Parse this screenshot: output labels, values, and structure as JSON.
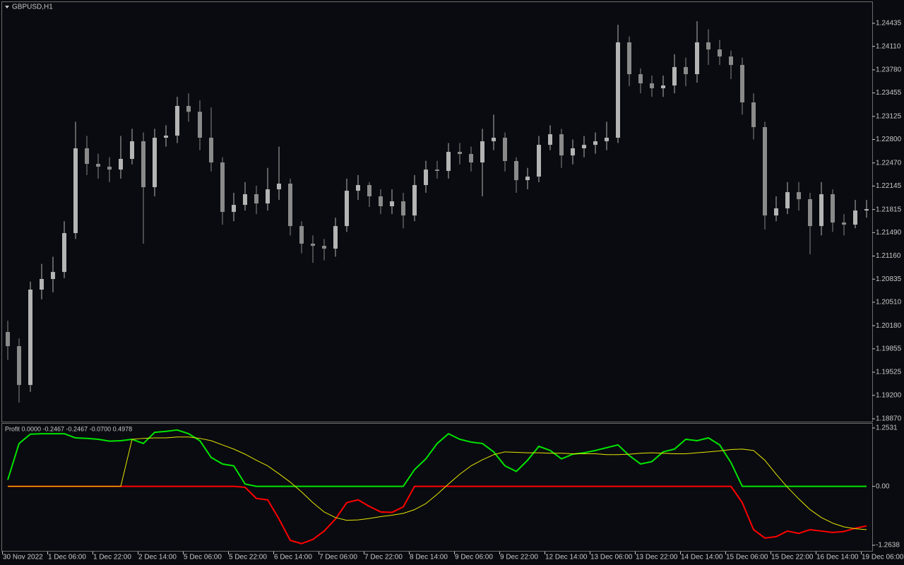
{
  "chart_data": [
    {
      "type": "candlestick",
      "title": "GBPUSD,H1",
      "open": [
        1.20091,
        1.19892,
        1.19346,
        1.20688,
        1.20837,
        1.20936,
        1.21483,
        1.22676,
        1.22457,
        1.22417,
        1.22377,
        1.22527,
        1.22775,
        1.22129,
        1.22825,
        1.22855,
        1.23272,
        1.2319,
        1.22825,
        1.22477,
        1.21781,
        1.2188,
        1.2203,
        1.219,
        1.22099,
        1.22179,
        1.21582,
        1.21334,
        1.21304,
        1.21264,
        1.21582,
        1.22079,
        1.22159,
        1.22,
        1.21861,
        1.2193,
        1.21731,
        1.22159,
        1.22377,
        1.22358,
        1.22626,
        1.22596,
        1.22477,
        1.22775,
        1.22825,
        1.22497,
        1.22228,
        1.22278,
        1.22725,
        1.22874,
        1.22576,
        1.22676,
        1.22725,
        1.22775,
        1.22825,
        1.24167,
        1.23719,
        1.2359,
        1.23521,
        1.2356,
        1.23819,
        1.23719,
        1.24167,
        1.24067,
        1.23968,
        1.23849,
        1.23322,
        1.22974,
        1.21731,
        1.21831,
        1.22059,
        1.2196,
        1.21582,
        1.2203,
        1.21632,
        1.21602,
        1.21801
      ],
      "high": [
        1.2025,
        1.2,
        1.208,
        1.2105,
        1.2115,
        1.2165,
        1.2305,
        1.2285,
        1.226,
        1.2255,
        1.2285,
        1.2295,
        1.229,
        1.2295,
        1.23,
        1.234,
        1.2345,
        1.2335,
        1.2325,
        1.2255,
        1.2205,
        1.222,
        1.2215,
        1.224,
        1.227,
        1.2225,
        1.2165,
        1.2145,
        1.214,
        1.217,
        1.2225,
        1.223,
        1.222,
        1.221,
        1.221,
        1.2205,
        1.223,
        1.225,
        1.225,
        1.2275,
        1.2275,
        1.227,
        1.2295,
        1.2315,
        1.229,
        1.2255,
        1.224,
        1.2285,
        1.23,
        1.2295,
        1.228,
        1.2285,
        1.229,
        1.2305,
        1.24415,
        1.2425,
        1.238,
        1.237,
        1.237,
        1.24,
        1.2395,
        1.24465,
        1.2435,
        1.242,
        1.2405,
        1.2395,
        1.2345,
        1.2305,
        1.22,
        1.222,
        1.222,
        1.2205,
        1.222,
        1.221,
        1.2175,
        1.2195,
        1.2195
      ],
      "low": [
        1.197,
        1.19098,
        1.1925,
        1.2055,
        1.2065,
        1.2085,
        1.214,
        1.223,
        1.2225,
        1.222,
        1.2225,
        1.2245,
        1.21334,
        1.22,
        1.227,
        1.2275,
        1.2305,
        1.2265,
        1.2235,
        1.216,
        1.2165,
        1.218,
        1.2175,
        1.218,
        1.2195,
        1.2145,
        1.212,
        1.21065,
        1.211,
        1.2115,
        1.215,
        1.2195,
        1.2185,
        1.2175,
        1.2175,
        1.2155,
        1.2165,
        1.2205,
        1.2225,
        1.2225,
        1.2245,
        1.2235,
        1.22,
        1.2265,
        1.2235,
        1.2205,
        1.221,
        1.222,
        1.2265,
        1.224,
        1.2245,
        1.2255,
        1.226,
        1.2265,
        1.2275,
        1.2355,
        1.2345,
        1.234,
        1.234,
        1.2345,
        1.2355,
        1.236,
        1.2385,
        1.2385,
        1.2365,
        1.2315,
        1.228,
        1.21533,
        1.2165,
        1.2175,
        1.218,
        1.21185,
        1.2145,
        1.215,
        1.2145,
        1.2155,
        1.217
      ],
      "close": [
        1.19892,
        1.19346,
        1.20688,
        1.20837,
        1.20936,
        1.21483,
        1.22676,
        1.22457,
        1.22417,
        1.22377,
        1.22527,
        1.22775,
        1.22129,
        1.22825,
        1.22855,
        1.23272,
        1.2319,
        1.22825,
        1.22477,
        1.21781,
        1.2188,
        1.2203,
        1.219,
        1.22099,
        1.22179,
        1.21582,
        1.21334,
        1.21304,
        1.21264,
        1.21582,
        1.22079,
        1.22159,
        1.22,
        1.21861,
        1.2193,
        1.21731,
        1.22159,
        1.22377,
        1.22358,
        1.22626,
        1.22596,
        1.22477,
        1.22775,
        1.22825,
        1.22497,
        1.22228,
        1.22278,
        1.22725,
        1.22874,
        1.22576,
        1.22676,
        1.22725,
        1.22775,
        1.22825,
        1.24167,
        1.23719,
        1.2359,
        1.23521,
        1.2356,
        1.23819,
        1.23719,
        1.24167,
        1.24067,
        1.23968,
        1.23849,
        1.23322,
        1.22974,
        1.21731,
        1.21831,
        1.22059,
        1.2196,
        1.21582,
        1.2203,
        1.21632,
        1.21602,
        1.21801,
        1.21821
      ],
      "bull_color": "#b4b4b4",
      "bear_color": "#8a8a8a",
      "ylim": [
        1.1883,
        1.24733
      ],
      "yticks": [
        1.24435,
        {
          "value": 1.2411,
          "label": "1.24110"
        },
        {
          "value": 1.2378,
          "label": "1.23780"
        },
        1.23455,
        1.23125,
        {
          "value": 1.228,
          "label": "1.22800"
        },
        {
          "value": 1.2247,
          "label": "1.22470"
        },
        1.22145,
        1.21815,
        {
          "value": 1.2149,
          "label": "1.21490"
        },
        {
          "value": 1.2116,
          "label": "1.21160"
        },
        1.20835,
        {
          "value": 1.2051,
          "label": "1.20510"
        },
        {
          "value": 1.2018,
          "label": "1.20180"
        },
        1.19855,
        1.19525,
        {
          "value": 1.192,
          "label": "1.19200"
        },
        {
          "value": 1.1887,
          "label": "1.18870"
        }
      ]
    },
    {
      "type": "line",
      "title": "Profit 0.0000 -0.2467 -0.2467 -0.0700 0.4978",
      "series": [
        {
          "color": "#00e400",
          "width": 2,
          "values": [
            0.14,
            0.92,
            1.12,
            1.13,
            1.13,
            1.13,
            1.04,
            1.03,
            1.01,
            0.97,
            0.98,
            1.01,
            0.92,
            1.16,
            1.18,
            1.21,
            1.13,
            0.98,
            0.62,
            0.48,
            0.44,
            0.05,
            0,
            0,
            0,
            0,
            0,
            0,
            0,
            0,
            0,
            0,
            0,
            0,
            0,
            0,
            0.36,
            0.59,
            0.92,
            1.13,
            1.01,
            0.95,
            0.92,
            0.74,
            0.44,
            0.32,
            0.56,
            0.86,
            0.77,
            0.59,
            0.69,
            0.72,
            0.77,
            0.83,
            0.89,
            0.66,
            0.48,
            0.53,
            0.74,
            0.8,
            1.01,
            0.98,
            1.04,
            0.89,
            0.51,
            0,
            0,
            0,
            0,
            0,
            0,
            0,
            0,
            0,
            0,
            0,
            0
          ]
        },
        {
          "color": "#ff0000",
          "width": 2,
          "values": [
            0,
            0,
            0,
            0,
            0,
            0,
            0,
            0,
            0,
            0,
            0,
            0,
            0,
            0,
            0,
            0,
            0,
            0,
            0,
            0,
            0,
            -0.02,
            -0.26,
            -0.29,
            -0.7,
            -1.16,
            -1.23,
            -1.14,
            -0.96,
            -0.7,
            -0.35,
            -0.29,
            -0.43,
            -0.55,
            -0.56,
            -0.44,
            0,
            0,
            0,
            0,
            0,
            0,
            0,
            0,
            0,
            0,
            0,
            0,
            0,
            0,
            0,
            0,
            0,
            0,
            0,
            0,
            0,
            0,
            0,
            0,
            0,
            0,
            0,
            0,
            0,
            -0.35,
            -0.93,
            -1.11,
            -1.08,
            -0.96,
            -1.01,
            -0.93,
            -0.96,
            -0.99,
            -0.97,
            -0.9,
            -0.85
          ]
        },
        {
          "color": "#e6e600",
          "width": 1,
          "values": [
            0,
            0,
            0,
            0,
            0,
            0,
            0,
            0,
            0,
            0,
            0,
            1.01,
            1.03,
            1.04,
            1.04,
            1.06,
            1.06,
            1.03,
            0.98,
            0.89,
            0.8,
            0.69,
            0.56,
            0.44,
            0.27,
            0.09,
            -0.12,
            -0.35,
            -0.55,
            -0.67,
            -0.73,
            -0.72,
            -0.69,
            -0.65,
            -0.62,
            -0.58,
            -0.5,
            -0.37,
            -0.17,
            0.05,
            0.26,
            0.44,
            0.57,
            0.68,
            0.74,
            0.73,
            0.72,
            0.72,
            0.71,
            0.71,
            0.7,
            0.7,
            0.7,
            0.68,
            0.68,
            0.69,
            0.71,
            0.72,
            0.71,
            0.7,
            0.7,
            0.72,
            0.74,
            0.76,
            0.79,
            0.8,
            0.77,
            0.56,
            0.26,
            -0.02,
            -0.27,
            -0.5,
            -0.67,
            -0.79,
            -0.87,
            -0.91,
            -0.93
          ]
        }
      ],
      "ylim": [
        -1.3856,
        1.3437
      ],
      "yticks": [
        1.2531,
        {
          "value": 0,
          "label": "0.00"
        },
        -1.2638
      ]
    }
  ],
  "time_axis": {
    "labels": [
      "30 Nov 2022",
      "1 Dec 06:00",
      "1 Dec 22:00",
      "2 Dec 14:00",
      "5 Dec 06:00",
      "5 Dec 22:00",
      "6 Dec 14:00",
      "7 Dec 06:00",
      "7 Dec 22:00",
      "8 Dec 14:00",
      "9 Dec 06:00",
      "9 Dec 22:00",
      "12 Dec 14:00",
      "13 Dec 06:00",
      "13 Dec 22:00",
      "14 Dec 14:00",
      "15 Dec 06:00",
      "15 Dec 22:00",
      "16 Dec 14:00",
      "19 Dec 06:00"
    ]
  }
}
